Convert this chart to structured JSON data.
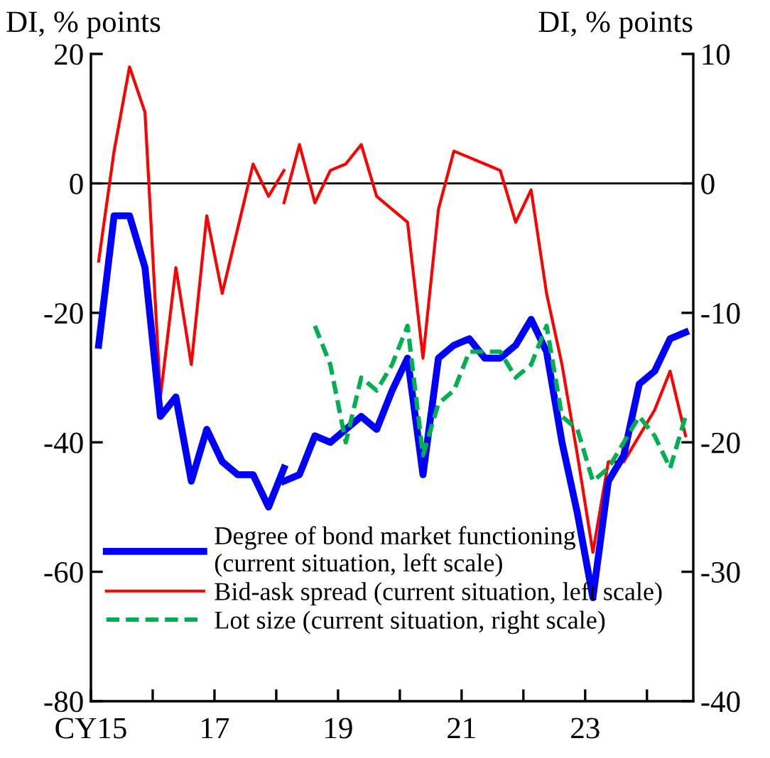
{
  "chart_data": {
    "type": "line",
    "ylabel": "DI, % points",
    "y2label": "DI, % points",
    "xlim": [
      15,
      24.75
    ],
    "xticks": [
      {
        "value": 15,
        "label": "CY15"
      },
      {
        "value": 16,
        "label": null
      },
      17,
      {
        "value": 18,
        "label": null
      },
      19,
      {
        "value": 20,
        "label": null
      },
      21,
      {
        "value": 22,
        "label": null
      },
      23,
      {
        "value": 24,
        "label": null
      }
    ],
    "ylim": [
      -80,
      20
    ],
    "yticks": [
      -80,
      -60,
      -40,
      -20,
      0,
      20
    ],
    "y2lim": [
      -40,
      10
    ],
    "y2ticks": [
      -40,
      -30,
      -20,
      -10,
      0,
      10
    ],
    "ref_lines": [
      {
        "axis": "y",
        "value": 0,
        "color": "#000000"
      }
    ],
    "legend": "bottom left",
    "grid": false,
    "marker": "none",
    "series": [
      {
        "name": "Degree of bond market functioning\n(current situation, left scale)",
        "color": "#0000ff",
        "line_style": "solid",
        "x": [
          18.125,
          18.375,
          18.625,
          18.875,
          19.125,
          19.375,
          19.625,
          19.875,
          20.125,
          20.375,
          20.625,
          20.875,
          21.125,
          21.375,
          21.625,
          21.875,
          22.125,
          22.375,
          22.625,
          22.875,
          23.125,
          23.375,
          23.625,
          23.875,
          24.125,
          24.375,
          24.625
        ],
        "values": [
          -46,
          -45,
          -39,
          -40,
          -38,
          -36,
          -38,
          -32,
          -27,
          -45,
          -27,
          -25,
          -24,
          -27,
          -27,
          -25,
          -21,
          -26,
          -40,
          -51,
          -64,
          -46,
          -42,
          -31,
          -29,
          -24,
          -23
        ]
      },
      {
        "name": "Bid-ask spread (current situation, left scale)",
        "color": "#ff0000",
        "line_style": "solid",
        "x": [
          18.125,
          18.375,
          18.625,
          18.875,
          19.125,
          19.375,
          19.625,
          19.875,
          20.125,
          20.375,
          20.625,
          20.875,
          21.125,
          21.375,
          21.625,
          21.875,
          22.125,
          22.375,
          22.625,
          22.875,
          23.125,
          23.375,
          23.625,
          23.875,
          24.125,
          24.375,
          24.625
        ],
        "values": [
          -3,
          6,
          -3,
          2,
          3,
          6,
          -2,
          -4,
          -6,
          -27,
          -4,
          5,
          4,
          3,
          2,
          -6,
          -1,
          -17,
          -28,
          -42,
          -57,
          -43,
          -43,
          -39,
          -35,
          -29,
          -39
        ]
      },
      {
        "name": "Lot size (current situation, right scale)",
        "color": "#00b050",
        "line_style": "dashed",
        "axis": "y2",
        "x": [
          18.625,
          18.875,
          19.125,
          19.375,
          19.625,
          19.875,
          20.125,
          20.375,
          20.625,
          20.875,
          21.125,
          21.375,
          21.625,
          21.875,
          22.125,
          22.375,
          22.625,
          22.875,
          23.125,
          23.375,
          23.625,
          23.875,
          24.125,
          24.375,
          24.625
        ],
        "values": [
          -11,
          -14,
          -20,
          -15,
          -16,
          -14,
          -11,
          -21,
          -17,
          -16,
          -13,
          -13,
          -13,
          -15,
          -14,
          -11,
          -18,
          -19,
          -23,
          -22,
          -20,
          -18,
          -19.5,
          -22,
          -18
        ]
      },
      {
        "color": "#0000ff",
        "line_style": "solid",
        "x": [
          15.125,
          15.375,
          15.625,
          15.875,
          16.125,
          16.375,
          16.625,
          16.875,
          17.125,
          17.375,
          17.625,
          17.875,
          18.125
        ],
        "values": [
          -25,
          -5,
          -5,
          -13,
          -36,
          -33,
          -46,
          -38,
          -43,
          -45,
          -45,
          -50,
          -44
        ]
      },
      {
        "color": "#ff0000",
        "line_style": "solid",
        "x": [
          15.125,
          15.375,
          15.625,
          15.875,
          16.125,
          16.375,
          16.625,
          16.875,
          17.125,
          17.375,
          17.625,
          17.875,
          18.125
        ],
        "values": [
          -12,
          5,
          18,
          11,
          -33,
          -13,
          -28,
          -5,
          -17,
          -7,
          3,
          -2,
          2
        ]
      }
    ]
  }
}
